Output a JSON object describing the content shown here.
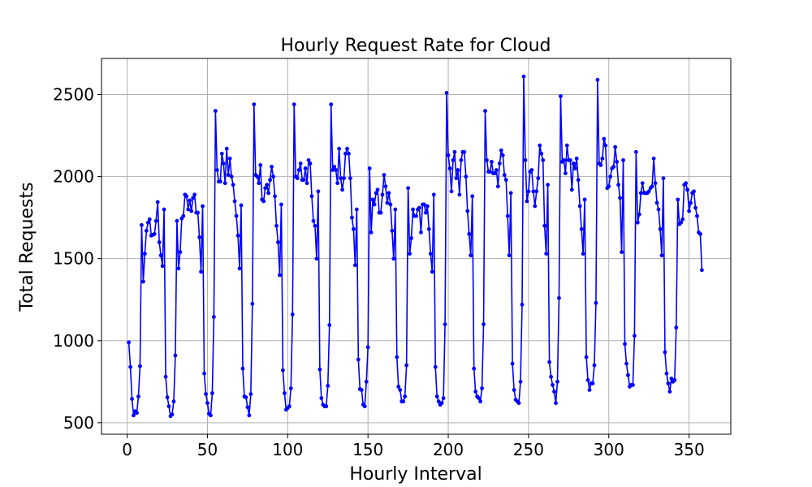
{
  "chart_data": {
    "type": "line",
    "title": "Hourly Request Rate for Cloud",
    "xlabel": "Hourly Interval",
    "ylabel": "Total Requests",
    "xlim": [
      -16,
      376
    ],
    "ylim": [
      430,
      2720
    ],
    "xticks": [
      0,
      50,
      100,
      150,
      200,
      250,
      300,
      350
    ],
    "yticks": [
      500,
      1000,
      1500,
      2000,
      2500
    ],
    "grid": true,
    "series": [
      {
        "color": "#0000ff",
        "marker": "circle",
        "x_start": 1,
        "x_step": 1,
        "values": [
          990,
          840,
          645,
          545,
          570,
          560,
          660,
          845,
          1705,
          1360,
          1530,
          1670,
          1720,
          1740,
          1640,
          1645,
          1650,
          1730,
          1845,
          1600,
          1520,
          1455,
          1800,
          780,
          655,
          600,
          540,
          550,
          630,
          910,
          1730,
          1440,
          1540,
          1745,
          1760,
          1890,
          1880,
          1800,
          1855,
          1790,
          1870,
          1890,
          1780,
          1780,
          1630,
          1420,
          1820,
          800,
          675,
          620,
          555,
          545,
          680,
          1145,
          2400,
          2040,
          1970,
          1970,
          2140,
          2080,
          1960,
          2170,
          2010,
          2110,
          2000,
          1950,
          1850,
          1760,
          1640,
          1440,
          1825,
          830,
          660,
          655,
          595,
          545,
          675,
          1225,
          2440,
          2010,
          2000,
          1960,
          2070,
          1860,
          1850,
          1930,
          1950,
          1900,
          1980,
          2060,
          2000,
          1880,
          1700,
          1600,
          1400,
          1830,
          820,
          680,
          580,
          590,
          600,
          710,
          1160,
          2440,
          2000,
          1990,
          2040,
          2080,
          1980,
          1980,
          2050,
          1960,
          2100,
          2080,
          1880,
          1730,
          1700,
          1500,
          1910,
          825,
          650,
          610,
          600,
          600,
          725,
          1095,
          2440,
          2040,
          2060,
          2040,
          1960,
          2170,
          1990,
          1920,
          1990,
          2140,
          2170,
          2140,
          1990,
          1750,
          1680,
          1460,
          1800,
          885,
          705,
          700,
          610,
          600,
          750,
          960,
          2050,
          1660,
          1860,
          1830,
          1900,
          1920,
          1780,
          1780,
          1890,
          2010,
          1940,
          1840,
          1900,
          1830,
          1670,
          1500,
          1800,
          900,
          720,
          700,
          630,
          630,
          660,
          850,
          1930,
          1530,
          1625,
          1800,
          1760,
          1760,
          1800,
          1810,
          1660,
          1830,
          1830,
          1780,
          1820,
          1680,
          1530,
          1420,
          1890,
          840,
          660,
          630,
          610,
          620,
          650,
          1100,
          2510,
          2130,
          2050,
          1910,
          2100,
          2150,
          1990,
          2040,
          1890,
          2100,
          2150,
          2150,
          2000,
          1790,
          1650,
          1520,
          1880,
          830,
          690,
          660,
          650,
          630,
          710,
          1100,
          2400,
          2100,
          2030,
          2030,
          2090,
          2020,
          2020,
          2040,
          1940,
          2080,
          2160,
          2130,
          2010,
          1980,
          1760,
          1520,
          1900,
          860,
          700,
          640,
          630,
          620,
          750,
          1220,
          2610,
          2100,
          1850,
          1910,
          2030,
          2040,
          1910,
          1820,
          1910,
          1990,
          2190,
          2140,
          2100,
          1700,
          1530,
          1950,
          870,
          780,
          730,
          690,
          620,
          750,
          1260,
          2490,
          2090,
          2100,
          2020,
          2190,
          2100,
          2100,
          1920,
          2080,
          2050,
          2110,
          1980,
          1820,
          1680,
          1530,
          1860,
          900,
          760,
          700,
          740,
          740,
          850,
          1230,
          2590,
          2080,
          2070,
          2110,
          2230,
          2190,
          1930,
          1940,
          2000,
          2050,
          2060,
          2180,
          2090,
          1950,
          1870,
          1540,
          2100,
          980,
          860,
          790,
          720,
          730,
          730,
          1030,
          2150,
          1720,
          1770,
          1900,
          1960,
          1900,
          1900,
          1900,
          1910,
          1930,
          1940,
          2110,
          1960,
          1840,
          1800,
          1680,
          1520,
          1990,
          930,
          800,
          740,
          690,
          770,
          750,
          760,
          1080,
          1860,
          1710,
          1720,
          1740,
          1950,
          1960,
          1920,
          1790,
          1840,
          1900,
          1910,
          1810,
          1760,
          1660,
          1650,
          1430
        ]
      }
    ]
  }
}
